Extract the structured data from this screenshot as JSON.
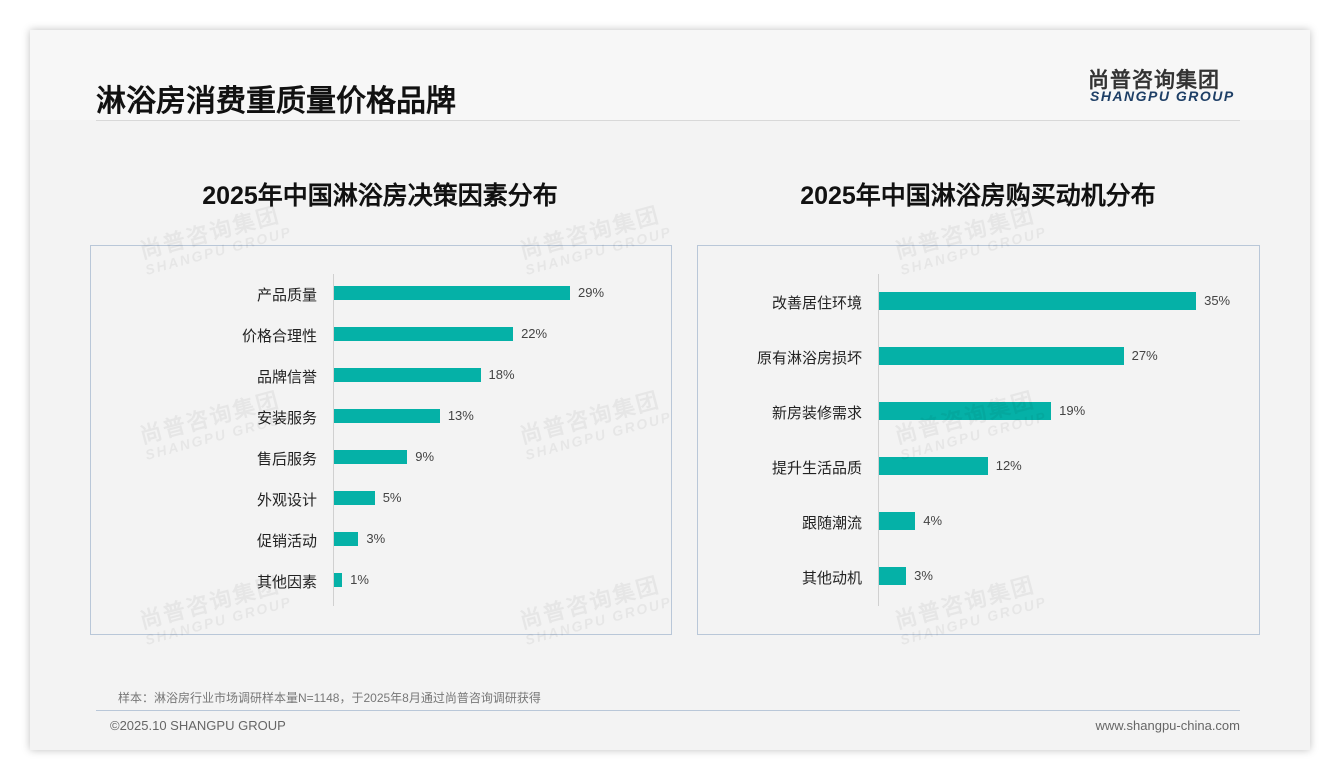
{
  "page": {
    "title": "淋浴房消费重质量价格品牌",
    "logo_cn": "尚普咨询集团",
    "logo_en": "SHANGPU GROUP",
    "watermark_cn": "尚普咨询集团",
    "watermark_en": "SHANGPU GROUP",
    "note": "样本：淋浴房行业市场调研样本量N=1148，于2025年8月通过尚普咨询调研获得",
    "copyright": "©2025.10 SHANGPU GROUP",
    "url": "www.shangpu-china.com",
    "bar_color": "#05b1a7"
  },
  "chart_data": [
    {
      "type": "bar",
      "orientation": "horizontal",
      "title": "2025年中国淋浴房决策因素分布",
      "categories": [
        "产品质量",
        "价格合理性",
        "品牌信誉",
        "安装服务",
        "售后服务",
        "外观设计",
        "促销活动",
        "其他因素"
      ],
      "values": [
        29,
        22,
        18,
        13,
        9,
        5,
        3,
        1
      ],
      "value_labels": [
        "29%",
        "22%",
        "18%",
        "13%",
        "9%",
        "5%",
        "3%",
        "1%"
      ],
      "unit": "%"
    },
    {
      "type": "bar",
      "orientation": "horizontal",
      "title": "2025年中国淋浴房购买动机分布",
      "categories": [
        "改善居住环境",
        "原有淋浴房损坏",
        "新房装修需求",
        "提升生活品质",
        "跟随潮流",
        "其他动机"
      ],
      "values": [
        35,
        27,
        19,
        12,
        4,
        3
      ],
      "value_labels": [
        "35%",
        "27%",
        "19%",
        "12%",
        "4%",
        "3%"
      ],
      "unit": "%"
    }
  ]
}
